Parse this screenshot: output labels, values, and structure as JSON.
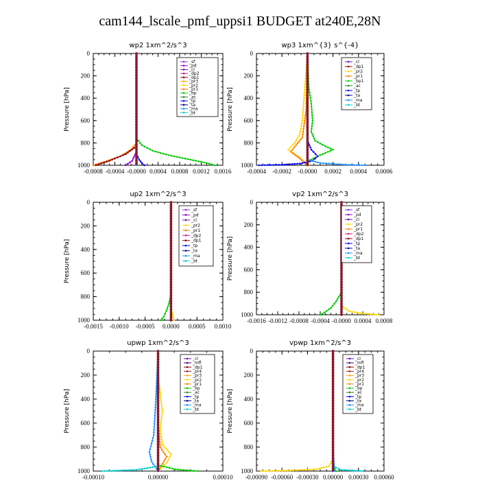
{
  "title": "cam144_lscale_pmf_uppsi1  BUDGET at240E,28N",
  "colors": {
    "sf": "#8a2be2",
    "pd": "#9400d3",
    "cl": "#6a0dad",
    "dp2": "#c71585",
    "dp1": "#8b0000",
    "pr3": "#ffa500",
    "pr2": "#ffd700",
    "pr1": "#ff7f00",
    "bp": "#00cc00",
    "ac": "#228b22",
    "tp": "#0000ff",
    "ta": "#00008b",
    "ma": "#1e90ff",
    "bt": "#00ced1",
    "mfl": "#4b0082",
    "pr4": "#b22222"
  },
  "chart_data": [
    {
      "type": "line",
      "title": "wp2   1xm^2/s^3",
      "ylabel": "Pressure [hPa]",
      "xlim": [
        -0.0008,
        0.0016
      ],
      "ylim": [
        1000,
        0
      ],
      "xticks": [
        "-0.0008",
        "-0.0004",
        "-0.0000",
        "0.0004",
        "0.0008",
        "0.0012",
        "0.0016"
      ],
      "yticks": [
        "0",
        "200",
        "400",
        "600",
        "800",
        "1000"
      ],
      "legend": [
        "_sf",
        "_pd",
        "_cl",
        "_dp2",
        "_dp1",
        "_pr3",
        "_pr2",
        "_pr1",
        "_bp",
        "_ac",
        "_tp",
        "_ta",
        "_ma",
        "_bt"
      ],
      "series": [
        {
          "name": "_bp",
          "color": "#00cc00",
          "x": [
            0,
            0,
            0.0001,
            0.0003,
            0.0006,
            0.001,
            0.0013,
            0.00145
          ],
          "y": [
            0,
            760,
            820,
            870,
            910,
            950,
            980,
            1000
          ]
        },
        {
          "name": "_pr1",
          "color": "#ff7f00",
          "x": [
            0,
            0,
            -0.0001,
            -0.0003,
            -0.0006,
            -0.0008
          ],
          "y": [
            0,
            800,
            860,
            920,
            970,
            1000
          ]
        },
        {
          "name": "_dp1",
          "color": "#8b0000",
          "x": [
            0,
            0,
            -0.0002,
            -0.0005,
            -0.00075
          ],
          "y": [
            0,
            830,
            900,
            960,
            1000
          ]
        },
        {
          "name": "_tp",
          "color": "#0000ff",
          "x": [
            0,
            0,
            5e-05,
            0.0001,
            0.00015
          ],
          "y": [
            0,
            900,
            950,
            980,
            1000
          ]
        },
        {
          "name": "_pd",
          "color": "#9400d3",
          "x": [
            0,
            0,
            -8e-05,
            -0.0002
          ],
          "y": [
            0,
            880,
            960,
            1000
          ]
        },
        {
          "name": "_bt",
          "color": "#00ced1",
          "x": [
            0,
            0
          ],
          "y": [
            0,
            1000
          ]
        }
      ]
    },
    {
      "type": "line",
      "title": "wp3   1xm^{3} s^{-4}",
      "ylabel": "Pressure [hPa]",
      "xlim": [
        -0.0004,
        0.0006
      ],
      "ylim": [
        1000,
        0
      ],
      "xticks": [
        "-0.0004",
        "-0.0002",
        "-0.0000",
        "0.0002",
        "0.0004",
        "0.0006"
      ],
      "yticks": [
        "0",
        "200",
        "400",
        "600",
        "800",
        "1000"
      ],
      "legend": [
        "_cl",
        "_dp1",
        "_pr2",
        "_pr1",
        "_bp1",
        "_ac",
        "_tp",
        "_ta",
        "_ma",
        "_bt"
      ],
      "series": [
        {
          "name": "_bp1",
          "color": "#00cc00",
          "x": [
            0,
            1e-05,
            3e-05,
            4e-05,
            3e-05,
            6e-05,
            0.00014,
            0.0002,
            8e-05,
            1e-05,
            0
          ],
          "y": [
            0,
            300,
            450,
            600,
            700,
            780,
            830,
            860,
            920,
            960,
            1000
          ]
        },
        {
          "name": "_pr2",
          "color": "#ffd700",
          "x": [
            0,
            -2e-05,
            -3e-05,
            -4e-05,
            -6e-05,
            -0.0001,
            -0.00015,
            -6e-05,
            0
          ],
          "y": [
            0,
            300,
            450,
            600,
            720,
            800,
            860,
            930,
            1000
          ]
        },
        {
          "name": "_pr1",
          "color": "#ff7f00",
          "x": [
            0,
            -1e-05,
            -4e-05,
            -9e-05,
            -0.00013,
            -6e-05,
            0
          ],
          "y": [
            0,
            500,
            750,
            820,
            880,
            940,
            1000
          ]
        },
        {
          "name": "_tp",
          "color": "#0000ff",
          "x": [
            0,
            0,
            3e-05,
            8e-05,
            4e-05,
            -6e-05,
            -0.0002,
            -0.00038
          ],
          "y": [
            0,
            780,
            860,
            920,
            960,
            985,
            995,
            1000
          ]
        },
        {
          "name": "_ma",
          "color": "#1e90ff",
          "x": [
            0,
            0,
            0.0001,
            0.0003,
            0.00045
          ],
          "y": [
            0,
            950,
            980,
            995,
            1000
          ]
        },
        {
          "name": "_dp1",
          "color": "#8b0000",
          "x": [
            0,
            0
          ],
          "y": [
            0,
            1000
          ]
        }
      ]
    },
    {
      "type": "line",
      "title": "up2   1xm^2/s^3",
      "ylabel": "Pressure [hPa]",
      "xlim": [
        -0.0015,
        0.001
      ],
      "ylim": [
        1000,
        0
      ],
      "xticks": [
        "-0.0015",
        "-0.0010",
        "-0.0005",
        "0.0000",
        "0.0005",
        "0.0010"
      ],
      "yticks": [
        "0",
        "200",
        "400",
        "600",
        "800",
        "1000"
      ],
      "legend": [
        "_sf",
        "_pd",
        "_cl",
        "_pr2",
        "_pr1",
        "_dp2",
        "_dp1",
        "_tp",
        "_ta",
        "_ma",
        "_bt"
      ],
      "series": [
        {
          "name": "_dp2",
          "color": "#00cc00",
          "x": [
            0,
            0,
            -4e-05,
            -9e-05,
            -0.00014,
            -0.0002
          ],
          "y": [
            0,
            780,
            860,
            920,
            970,
            1000
          ]
        },
        {
          "name": "_pr1",
          "color": "#ffd700",
          "x": [
            0,
            0,
            3e-05,
            6e-05
          ],
          "y": [
            0,
            880,
            960,
            1000
          ]
        },
        {
          "name": "_sf",
          "color": "#c71585",
          "x": [
            0,
            0
          ],
          "y": [
            0,
            1000
          ]
        },
        {
          "name": "_cl",
          "color": "#b22222",
          "x": [
            0,
            0
          ],
          "y": [
            0,
            1000
          ]
        }
      ]
    },
    {
      "type": "line",
      "title": "vp2   1xm^2/s^3",
      "ylabel": "Pressure [hPa]",
      "xlim": [
        -0.0016,
        0.0008
      ],
      "ylim": [
        1000,
        0
      ],
      "xticks": [
        "-0.0016",
        "-0.0012",
        "-0.0008",
        "-0.0004",
        "-0.0000",
        "0.0004",
        "0.0008"
      ],
      "yticks": [
        "0",
        "200",
        "400",
        "600",
        "800",
        "1000"
      ],
      "legend": [
        "_sf",
        "_pd",
        "_cl",
        "_pr2",
        "_pr1",
        "_dp2",
        "_dp1",
        "_tp",
        "_ta",
        "_ma",
        "_bt"
      ],
      "series": [
        {
          "name": "_dp2",
          "color": "#00cc00",
          "x": [
            0,
            0,
            -0.0001,
            -0.0002,
            -0.00032,
            -0.0004
          ],
          "y": [
            0,
            800,
            880,
            940,
            980,
            1000
          ]
        },
        {
          "name": "_pr1",
          "color": "#ffd700",
          "x": [
            0,
            0,
            0.00015,
            0.0004,
            0.0007
          ],
          "y": [
            0,
            920,
            970,
            990,
            1000
          ]
        },
        {
          "name": "_cl",
          "color": "#b22222",
          "x": [
            0,
            0
          ],
          "y": [
            0,
            1000
          ]
        }
      ]
    },
    {
      "type": "line",
      "title": "upwp   1xm^2/s^3",
      "ylabel": "Pressure [hPa]",
      "xlim": [
        -0.00015,
        0.00015
      ],
      "ylim": [
        1000,
        0
      ],
      "xticks": [
        "-0.00010",
        "0.00000",
        "0.00010"
      ],
      "yticks": [
        "0",
        "200",
        "400",
        "600",
        "800",
        "1000"
      ],
      "legend": [
        "_cl",
        "_mfl",
        "_dp1",
        "_pr4",
        "_pr3",
        "_pr2",
        "_pr1",
        "_bp",
        "_ac",
        "_tp",
        "_ta",
        "_ma",
        "_bt"
      ],
      "series": [
        {
          "name": "_pr2",
          "color": "#ffd700",
          "x": [
            0,
            0,
            5e-06,
            1e-05,
            5e-06,
            1e-05,
            3e-05,
            2e-05,
            0
          ],
          "y": [
            0,
            200,
            350,
            500,
            650,
            780,
            860,
            930,
            1000
          ]
        },
        {
          "name": "_pr1",
          "color": "#ff7f00",
          "x": [
            0,
            0,
            5e-06,
            2e-05,
            1e-05,
            0
          ],
          "y": [
            0,
            600,
            800,
            880,
            940,
            1000
          ]
        },
        {
          "name": "_tp",
          "color": "#1e90ff",
          "x": [
            0,
            -5e-06,
            -1e-05,
            -2e-05,
            -1.5e-05,
            0
          ],
          "y": [
            0,
            400,
            700,
            840,
            920,
            1000
          ]
        },
        {
          "name": "_ma",
          "color": "#00ced1",
          "x": [
            0,
            0,
            -5e-05,
            -0.00013
          ],
          "y": [
            0,
            960,
            990,
            1000
          ]
        },
        {
          "name": "_bp",
          "color": "#00cc00",
          "x": [
            0,
            0,
            4e-05,
            9e-05
          ],
          "y": [
            0,
            950,
            985,
            1000
          ]
        },
        {
          "name": "_cl",
          "color": "#6a0dad",
          "x": [
            0,
            0
          ],
          "y": [
            0,
            1000
          ]
        }
      ]
    },
    {
      "type": "line",
      "title": "vpwp   1xm^2/s^3",
      "ylabel": "Pressure [hPa]",
      "xlim": [
        -0.0009,
        0.0006
      ],
      "ylim": [
        1000,
        0
      ],
      "xticks": [
        "-0.00090",
        "-0.00060",
        "-0.00030",
        "0.00000",
        "0.00030",
        "0.00060"
      ],
      "yticks": [
        "0",
        "200",
        "400",
        "600",
        "800",
        "1000"
      ],
      "legend": [
        "_cl",
        "_mfl",
        "_dp1",
        "_pr4",
        "_pr3",
        "_pr2",
        "_pr1",
        "_bp",
        "_ac",
        "_tp",
        "_ta",
        "_ma",
        "_bt"
      ],
      "series": [
        {
          "name": "_pr2",
          "color": "#ffd700",
          "x": [
            0,
            0,
            -5e-05,
            -0.0002,
            -0.0005,
            -0.00085
          ],
          "y": [
            0,
            900,
            960,
            985,
            995,
            1000
          ]
        },
        {
          "name": "_tp",
          "color": "#1e90ff",
          "x": [
            0,
            0,
            1e-05,
            2e-05
          ],
          "y": [
            0,
            800,
            920,
            1000
          ]
        },
        {
          "name": "_ma",
          "color": "#00ced1",
          "x": [
            0,
            0,
            0.0001,
            0.00035
          ],
          "y": [
            0,
            960,
            990,
            1000
          ]
        },
        {
          "name": "_bp",
          "color": "#00cc00",
          "x": [
            0,
            0,
            4e-05
          ],
          "y": [
            0,
            970,
            1000
          ]
        },
        {
          "name": "_cl",
          "color": "#6a0dad",
          "x": [
            0,
            0
          ],
          "y": [
            0,
            1000
          ]
        }
      ]
    }
  ]
}
